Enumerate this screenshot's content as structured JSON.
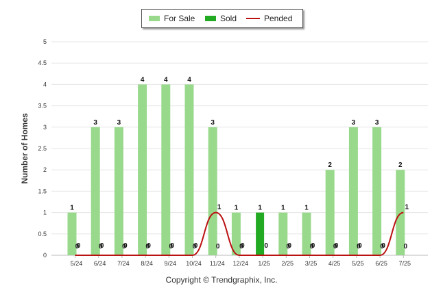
{
  "chart_data": {
    "type": "bar",
    "ylabel": "Number of Homes",
    "ylim": [
      0,
      5
    ],
    "yticks": [
      "0",
      "0.5",
      "1",
      "1.5",
      "2",
      "2.5",
      "3",
      "3.5",
      "4",
      "4.5",
      "5"
    ],
    "categories": [
      "5/24",
      "6/24",
      "7/24",
      "8/24",
      "9/24",
      "10/24",
      "11/24",
      "12/24",
      "1/25",
      "2/25",
      "3/25",
      "4/25",
      "5/25",
      "6/25",
      "7/25"
    ],
    "series": [
      {
        "name": "For Sale",
        "kind": "bar",
        "color": "#99d98c",
        "values": [
          1,
          3,
          3,
          4,
          4,
          4,
          3,
          1,
          0,
          1,
          1,
          2,
          3,
          3,
          2
        ]
      },
      {
        "name": "Sold",
        "kind": "bar",
        "color": "#22aa22",
        "values": [
          0,
          0,
          0,
          0,
          0,
          0,
          0,
          0,
          1,
          0,
          0,
          0,
          0,
          0,
          0
        ]
      },
      {
        "name": "Pended",
        "kind": "line",
        "color": "#bb1111",
        "values": [
          0,
          0,
          0,
          0,
          0,
          0,
          1,
          0,
          0,
          0,
          0,
          0,
          0,
          0,
          1
        ]
      }
    ],
    "legend_position": "top-center",
    "grid": true
  },
  "footer": {
    "copyright": "Copyright © Trendgraphix, Inc."
  }
}
